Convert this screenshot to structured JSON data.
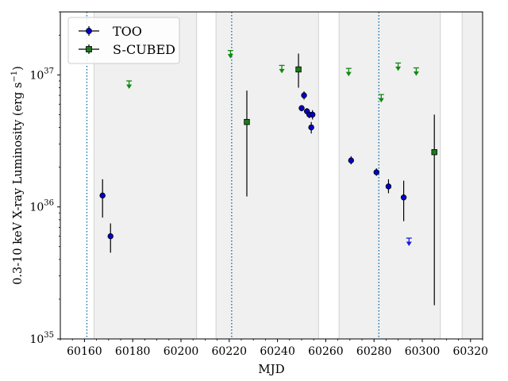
{
  "chart_data": {
    "type": "scatter",
    "title": "",
    "xlabel": "MJD",
    "ylabel": "0.3-10 keV X-ray Luminosity (erg s",
    "ylabel_exp": "−1",
    "ylabel_end": ")",
    "xlim": [
      60150,
      60325
    ],
    "ylim": [
      1e+35,
      3e+37
    ],
    "yscale": "log",
    "x_ticks": [
      60160,
      60180,
      60200,
      60220,
      60240,
      60260,
      60280,
      60300,
      60320
    ],
    "y_ticks": [
      {
        "value": 1e+35,
        "base": "10",
        "exp": "35"
      },
      {
        "value": 1e+36,
        "base": "10",
        "exp": "36"
      },
      {
        "value": 1e+37,
        "base": "10",
        "exp": "37"
      }
    ],
    "shaded_bands": [
      [
        60164,
        60206.5
      ],
      [
        60214.5,
        60257
      ],
      [
        60265.5,
        60307.5
      ],
      [
        60316.5,
        60325
      ]
    ],
    "vertical_lines": [
      60161,
      60221,
      60282
    ],
    "legend_position": "top-left",
    "series": [
      {
        "name": "TOO",
        "marker": "circle",
        "color": "#0000cc",
        "points": [
          {
            "x": 60167.5,
            "y": 1.22e+36,
            "ylo": 8.3e+35,
            "yhi": 1.62e+36
          },
          {
            "x": 60170.8,
            "y": 6e+35,
            "ylo": 4.5e+35,
            "yhi": 7.5e+35
          },
          {
            "x": 60250.0,
            "y": 5.6e+36,
            "ylo": 5.3e+36,
            "yhi": 5.9e+36
          },
          {
            "x": 60251.0,
            "y": 7e+36,
            "ylo": 6.5e+36,
            "yhi": 7.5e+36
          },
          {
            "x": 60252.2,
            "y": 5.3e+36,
            "ylo": 5e+36,
            "yhi": 5.6e+36
          },
          {
            "x": 60253.2,
            "y": 5e+36,
            "ylo": 4.7e+36,
            "yhi": 5.3e+36
          },
          {
            "x": 60254.0,
            "y": 4e+36,
            "ylo": 3.6e+36,
            "yhi": 4.4e+36
          },
          {
            "x": 60254.5,
            "y": 5e+36,
            "ylo": 4.6e+36,
            "yhi": 5.4e+36
          },
          {
            "x": 60270.5,
            "y": 2.25e+36,
            "ylo": 2.1e+36,
            "yhi": 2.42e+36
          },
          {
            "x": 60281.0,
            "y": 1.83e+36,
            "ylo": 1.72e+36,
            "yhi": 1.96e+36
          },
          {
            "x": 60286.0,
            "y": 1.43e+36,
            "ylo": 1.27e+36,
            "yhi": 1.62e+36
          },
          {
            "x": 60292.3,
            "y": 1.18e+36,
            "ylo": 7.8e+35,
            "yhi": 1.58e+36
          }
        ]
      },
      {
        "name": "S-CUBED",
        "marker": "square",
        "color": "#1a7a1a",
        "points": [
          {
            "x": 60227.3,
            "y": 4.4e+36,
            "ylo": 1.2e+36,
            "yhi": 7.6e+36
          },
          {
            "x": 60248.7,
            "y": 1.1e+37,
            "ylo": 8e+36,
            "yhi": 1.45e+37
          },
          {
            "x": 60305.0,
            "y": 2.6e+36,
            "ylo": 1.8e+35,
            "yhi": 5e+36
          }
        ]
      }
    ],
    "upper_limits": [
      {
        "x": 60178.5,
        "y": 9e+36,
        "color": "#118811"
      },
      {
        "x": 60220.5,
        "y": 1.53e+37,
        "color": "#118811"
      },
      {
        "x": 60241.8,
        "y": 1.18e+37,
        "color": "#118811"
      },
      {
        "x": 60269.5,
        "y": 1.12e+37,
        "color": "#118811"
      },
      {
        "x": 60283.0,
        "y": 7.1e+36,
        "color": "#118811"
      },
      {
        "x": 60290.0,
        "y": 1.23e+37,
        "color": "#118811"
      },
      {
        "x": 60297.5,
        "y": 1.13e+37,
        "color": "#118811"
      },
      {
        "x": 60294.5,
        "y": 5.8e+35,
        "color": "#1a1ae0"
      }
    ]
  }
}
